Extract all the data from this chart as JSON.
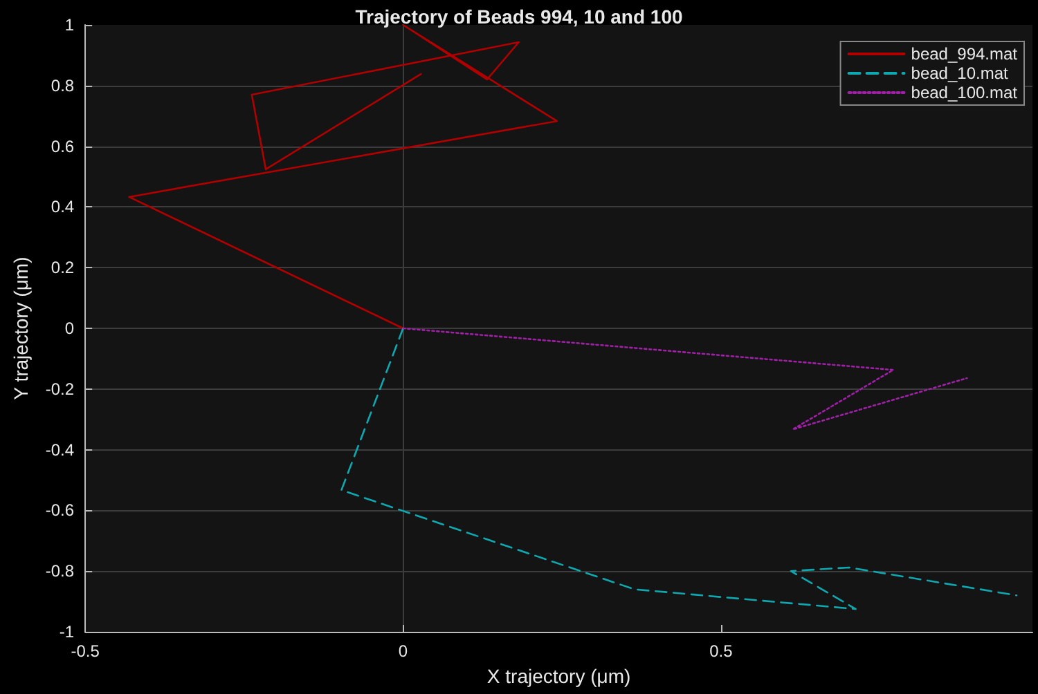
{
  "chart_data": {
    "type": "line",
    "title": "Trajectory of Beads 994, 10 and 100",
    "xlabel": "X trajectory (μm)",
    "ylabel": "Y trajectory (μm)",
    "xlim": [
      -0.5,
      0.99
    ],
    "xticks": [
      -0.5,
      0,
      0.5
    ],
    "ylim": [
      -1,
      1
    ],
    "yticks": [
      -1,
      -0.8,
      -0.6,
      -0.4,
      -0.2,
      0,
      0.2,
      0.4,
      0.6,
      0.8,
      1
    ],
    "grid": true,
    "legend": "top right",
    "marker": "none",
    "series": [
      {
        "name": "bead_994.mat",
        "color": "#b00000",
        "line_style": "solid",
        "x": [
          0,
          -0.431,
          0.242,
          0,
          0.132,
          0.182,
          -0.238,
          -0.216,
          0.028
        ],
        "values": [
          0,
          0.433,
          0.683,
          1.0,
          0.82,
          0.943,
          0.77,
          0.524,
          0.838
        ]
      },
      {
        "name": "bead_10.mat",
        "color": "#10a8b0",
        "line_style": "dashed",
        "x": [
          0,
          -0.097,
          0.364,
          0.712,
          0.61,
          0.701,
          0.965
        ],
        "values": [
          0,
          -0.533,
          -0.86,
          -0.925,
          -0.8,
          -0.788,
          -0.88
        ]
      },
      {
        "name": "bead_100.mat",
        "color": "#a020a8",
        "line_style": "dotted",
        "x": [
          0,
          0.771,
          0.613,
          0.887
        ],
        "values": [
          0,
          -0.137,
          -0.333,
          -0.164
        ]
      }
    ]
  }
}
